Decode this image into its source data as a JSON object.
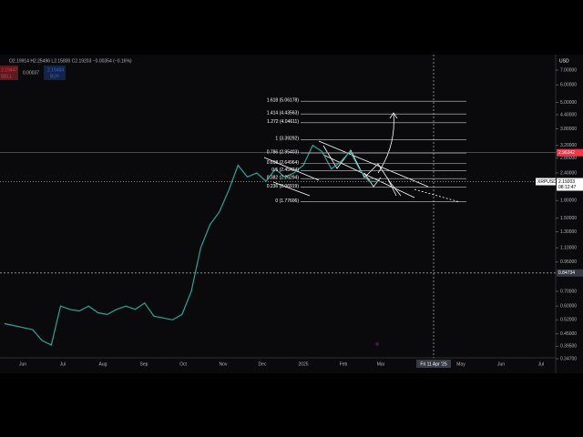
{
  "header": {
    "ohlc": "O2.19914 H2.25496 L2.15800 C2.19203 −0.00354 (−0.16%)",
    "sell_price": "2.19447",
    "sell": "SELL",
    "spread": "0.00037",
    "buy_price": "2.19484",
    "buy": "BUY"
  },
  "price_axis": {
    "currency": "USD",
    "scale": "log",
    "ticks": [
      {
        "value": 7,
        "label": "7.00000"
      },
      {
        "value": 6,
        "label": "6.00000"
      },
      {
        "value": 5,
        "label": "5.00000"
      },
      {
        "value": 4.4,
        "label": "4.40000"
      },
      {
        "value": 3.8,
        "label": "3.80000"
      },
      {
        "value": 3.2,
        "label": "3.20000"
      },
      {
        "value": 2.8,
        "label": "2.80000"
      },
      {
        "value": 2.4,
        "label": "2.40000"
      },
      {
        "value": 1.8,
        "label": "1.80000"
      },
      {
        "value": 1.5,
        "label": "1.50000"
      },
      {
        "value": 1.3,
        "label": "1.30000"
      },
      {
        "value": 1.1,
        "label": "1.10000"
      },
      {
        "value": 0.95,
        "label": "0.95000"
      },
      {
        "value": 0.7,
        "label": "0.70000"
      },
      {
        "value": 0.6,
        "label": "0.60000"
      },
      {
        "value": 0.52,
        "label": "0.52000"
      },
      {
        "value": 0.45,
        "label": "0.45000"
      },
      {
        "value": 0.395,
        "label": "0.39500"
      },
      {
        "value": 0.347,
        "label": "0.34700"
      }
    ],
    "marker_level": {
      "value": 2.96342,
      "label": "2.96342"
    },
    "current": {
      "symbol": "XRPUSD",
      "value": 2.19203,
      "label": "2.19203",
      "countdown": "08:12:47"
    },
    "crosshair": {
      "value": 0.84734,
      "label": "0.84734"
    }
  },
  "time_axis": {
    "labels": [
      "Jun",
      "Jul",
      "Aug",
      "Sep",
      "Oct",
      "Nov",
      "Dec",
      "2025",
      "Feb",
      "Mar",
      "May",
      "Jun",
      "Jul"
    ],
    "crosshair": "Fri 11 Apr '25"
  },
  "price_line": [
    0.5,
    0.49,
    0.48,
    0.47,
    0.42,
    0.4,
    0.6,
    0.58,
    0.57,
    0.6,
    0.56,
    0.55,
    0.58,
    0.6,
    0.58,
    0.62,
    0.54,
    0.53,
    0.52,
    0.55,
    0.7,
    1.1,
    1.4,
    1.6,
    2.0,
    2.6,
    2.3,
    2.4,
    2.2,
    2.5,
    2.3,
    2.4,
    2.6,
    3.2,
    3.0,
    2.5,
    2.7,
    3.0,
    2.5,
    2.2,
    2.19
  ],
  "fib_levels": [
    {
      "label": "1.618 (5.06178)",
      "price": 5.06178
    },
    {
      "label": "1.414 (4.43563)",
      "price": 4.43563
    },
    {
      "label": "1.272 (4.04611)",
      "price": 4.04611
    },
    {
      "label": "1 (3.39292)",
      "price": 3.39292
    },
    {
      "label": "0.786 (2.95403)",
      "price": 2.95403
    },
    {
      "label": "0.618 (2.64964)",
      "price": 2.64964
    },
    {
      "label": "0.5 (2.45424)",
      "price": 2.45424
    },
    {
      "label": "0.382 (2.26294)",
      "price": 2.26294
    },
    {
      "label": "0.236 (2.06919)",
      "price": 2.06919
    },
    {
      "label": "0 (1.77606)",
      "price": 1.77606
    }
  ]
}
